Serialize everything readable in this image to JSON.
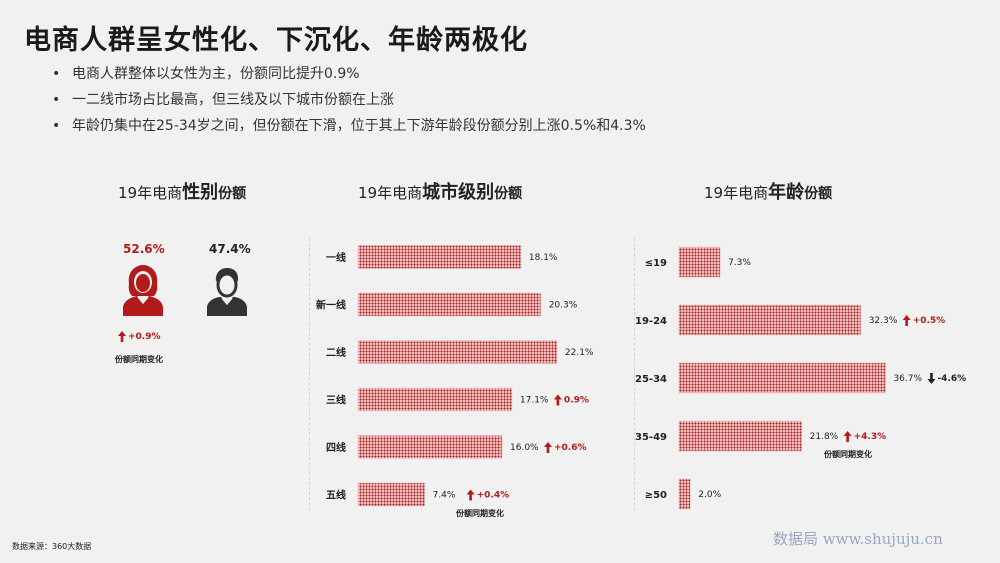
{
  "title": "电商人群呈女性化、下沉化、年龄两极化",
  "bullets": [
    "电商人群整体以女性为主，份额同比提升0.9%",
    "一二线市场占比最高，但三线及以下城市份额在上涨",
    "年龄仍集中在25-34岁之间，但份额在下滑，位于其上下游年龄段份额分别上涨0.5%和4.3%"
  ],
  "colors": {
    "accent": "#b11b1b",
    "dark": "#333333",
    "bar": "#d46a6a"
  },
  "gender": {
    "title_prefix": "19年电商",
    "title_em": "性别",
    "title_suffix": "份额",
    "female_pct": "52.6%",
    "male_pct": "47.4%",
    "female_change": "+0.9%",
    "note": "份额同期变化",
    "female_icon": "female-user-icon",
    "male_icon": "male-user-icon"
  },
  "city": {
    "title_prefix": "19年电商",
    "title_em": "城市级别",
    "title_suffix": "份额",
    "note": "份额同期变化"
  },
  "age": {
    "title_prefix": "19年电商",
    "title_em": "年龄",
    "title_suffix": "份额",
    "note": "份额同期变化"
  },
  "chart_data": [
    {
      "type": "bar",
      "orientation": "horizontal",
      "title": "19年电商城市级别份额",
      "categories": [
        "一线",
        "新一线",
        "二线",
        "三线",
        "四线",
        "五线"
      ],
      "values": [
        18.1,
        20.3,
        22.1,
        17.1,
        16.0,
        7.4
      ],
      "value_labels": [
        "18.1%",
        "20.3%",
        "22.1%",
        "17.1%",
        "16.0%",
        "7.4%"
      ],
      "changes": [
        "",
        "",
        "",
        "0.9%",
        "+0.6%",
        "+0.4%"
      ],
      "change_directions": [
        "",
        "",
        "",
        "up",
        "up",
        "up"
      ],
      "xlim": [
        0,
        25
      ]
    },
    {
      "type": "bar",
      "orientation": "horizontal",
      "title": "19年电商年龄份额",
      "categories": [
        "≤19",
        "19-24",
        "25-34",
        "35-49",
        "≥50"
      ],
      "values": [
        7.3,
        32.3,
        36.7,
        21.8,
        2.0
      ],
      "value_labels": [
        "7.3%",
        "32.3%",
        "36.7%",
        "21.8%",
        "2.0%"
      ],
      "changes": [
        "",
        "+0.5%",
        "-4.6%",
        "+4.3%",
        ""
      ],
      "change_directions": [
        "",
        "up",
        "down",
        "up",
        ""
      ],
      "xlim": [
        0,
        40
      ]
    }
  ],
  "source": "数据来源：360大数据",
  "watermark": "数据局  www.shujuju.cn"
}
